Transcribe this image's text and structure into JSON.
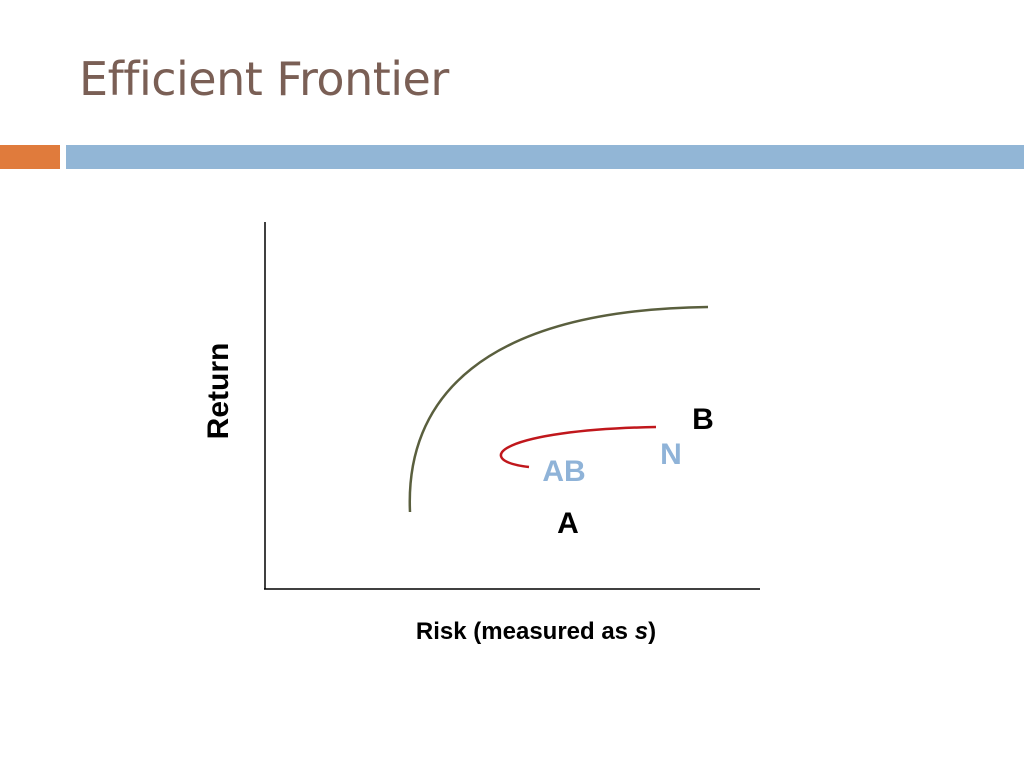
{
  "slide": {
    "title": "Efficient Frontier"
  },
  "diagram": {
    "y_axis_label": "Return",
    "x_axis_label_prefix": "Risk (measured as ",
    "x_axis_label_symbol": "s",
    "x_axis_label_suffix": ")",
    "point_labels": {
      "b": "B",
      "n": "N",
      "ab": "AB",
      "a": "A"
    }
  },
  "colors": {
    "title": "#7a5f55",
    "accent_bar": "#e07b3c",
    "band": "#92b6d6",
    "frontier_curve": "#5a5f3e",
    "ab_curve": "#c0171c",
    "light_label": "#8fb3d8",
    "axis": "#000000"
  }
}
